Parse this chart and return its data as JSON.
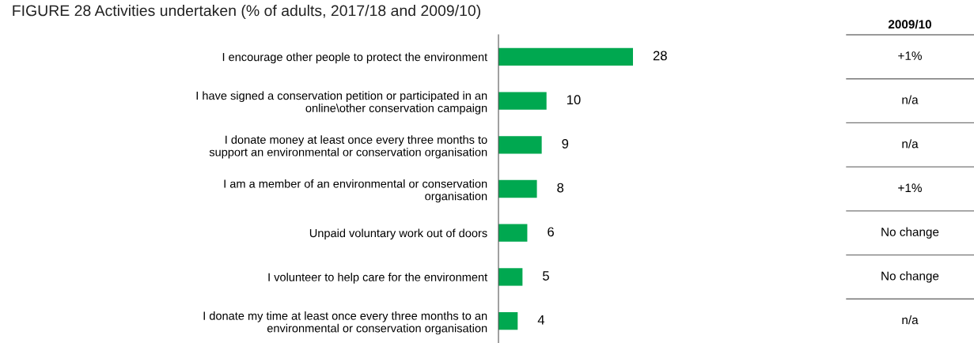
{
  "chart_data": {
    "type": "bar",
    "orientation": "horizontal",
    "title": "FIGURE 28 Activities undertaken (% of adults, 2017/18 and 2009/10)",
    "categories": [
      "I encourage other people to protect the environment",
      "I have signed a conservation petition or participated in an\nonline\\other conservation campaign",
      "I donate money at least once every three months to\nsupport an environmental or conservation organisation",
      "I am a member of an environmental or conservation\norganisation",
      "Unpaid voluntary work out of doors",
      "I volunteer to help care for the environment",
      "I donate my time at least once every three months to an\nenvironmental or conservation organisation"
    ],
    "values": [
      28,
      10,
      9,
      8,
      6,
      5,
      4
    ],
    "color": "#00a850",
    "data_labels": true,
    "annotations": [
      "2009/10",
      "+1%",
      "n/a",
      "n/a",
      "+1%",
      "No change",
      "No change",
      "n/a"
    ]
  }
}
